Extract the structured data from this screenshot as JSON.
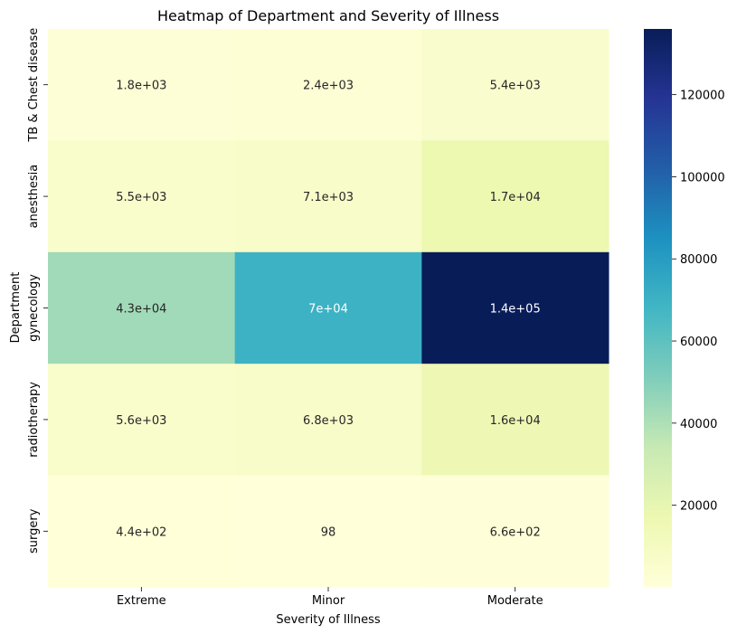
{
  "chart_data": {
    "type": "heatmap",
    "title": "Heatmap of Department and Severity of Illness",
    "xlabel": "Severity of Illness",
    "ylabel": "Department",
    "x_categories": [
      "Extreme",
      "Minor",
      "Moderate"
    ],
    "y_categories": [
      "TB & Chest disease",
      "anesthesia",
      "gynecology",
      "radiotherapy",
      "surgery"
    ],
    "values": [
      [
        1800,
        2400,
        5400
      ],
      [
        5500,
        7100,
        17000
      ],
      [
        43000,
        70000,
        136000
      ],
      [
        5600,
        6800,
        16000
      ],
      [
        440,
        98,
        660
      ]
    ],
    "annotations": [
      [
        "1.8e+03",
        "2.4e+03",
        "5.4e+03"
      ],
      [
        "5.5e+03",
        "7.1e+03",
        "1.7e+04"
      ],
      [
        "4.3e+04",
        "7e+04",
        "1.4e+05"
      ],
      [
        "5.6e+03",
        "6.8e+03",
        "1.6e+04"
      ],
      [
        "4.4e+02",
        "98",
        "6.6e+02"
      ]
    ],
    "colorscale": "YlGnBu",
    "colorbar_range": [
      98,
      136000
    ],
    "colorbar_ticks": [
      20000,
      40000,
      60000,
      80000,
      100000,
      120000
    ],
    "colorbar_tick_labels": [
      "20000",
      "40000",
      "60000",
      "80000",
      "100000",
      "120000"
    ],
    "colors": [
      "#ffffd9",
      "#edf8b1",
      "#c7e9b4",
      "#7fcdbb",
      "#41b6c4",
      "#1d91c0",
      "#225ea8",
      "#253494",
      "#081d58"
    ]
  }
}
